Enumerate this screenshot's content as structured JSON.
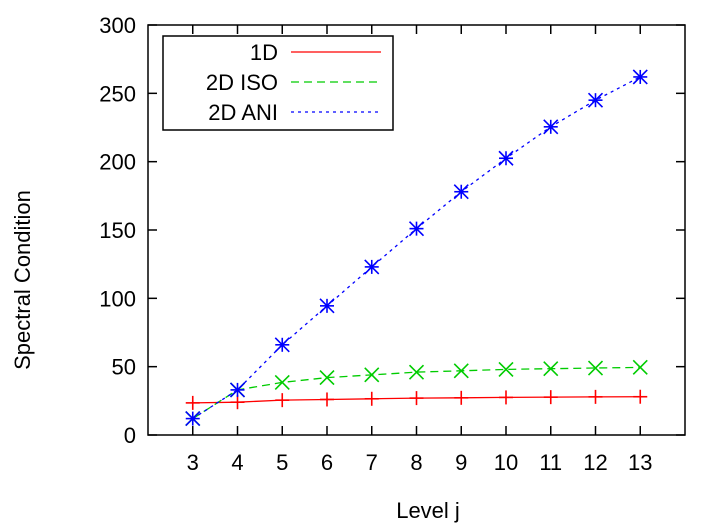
{
  "chart_data": {
    "type": "line",
    "title": "",
    "xlabel": "Level j",
    "ylabel": "Spectral Condition",
    "xlim": [
      2,
      14
    ],
    "ylim": [
      0,
      300
    ],
    "x_ticks": [
      3,
      4,
      5,
      6,
      7,
      8,
      9,
      10,
      11,
      12,
      13
    ],
    "y_ticks": [
      0,
      50,
      100,
      150,
      200,
      250,
      300
    ],
    "grid": false,
    "legend_position": "top-left",
    "series": [
      {
        "name": "1D",
        "color": "#ff0000",
        "line_style": "solid",
        "marker": "plus",
        "x": [
          3,
          4,
          5,
          6,
          7,
          8,
          9,
          10,
          11,
          12,
          13
        ],
        "values": [
          23.5,
          24,
          25.5,
          26,
          26.5,
          27,
          27.2,
          27.5,
          27.7,
          27.9,
          28
        ]
      },
      {
        "name": "2D ISO",
        "color": "#00cc00",
        "line_style": "dashed",
        "marker": "cross",
        "x": [
          3,
          4,
          5,
          6,
          7,
          8,
          9,
          10,
          11,
          12,
          13
        ],
        "values": [
          12,
          33,
          38.5,
          42,
          44,
          46,
          47,
          48,
          48.5,
          49,
          49.5
        ]
      },
      {
        "name": "2D ANI",
        "color": "#0000ff",
        "line_style": "dotted",
        "marker": "star",
        "x": [
          3,
          4,
          5,
          6,
          7,
          8,
          9,
          10,
          11,
          12,
          13
        ],
        "values": [
          12,
          33,
          66,
          94.5,
          123,
          151,
          178,
          202.5,
          225.5,
          245,
          262
        ]
      }
    ]
  }
}
